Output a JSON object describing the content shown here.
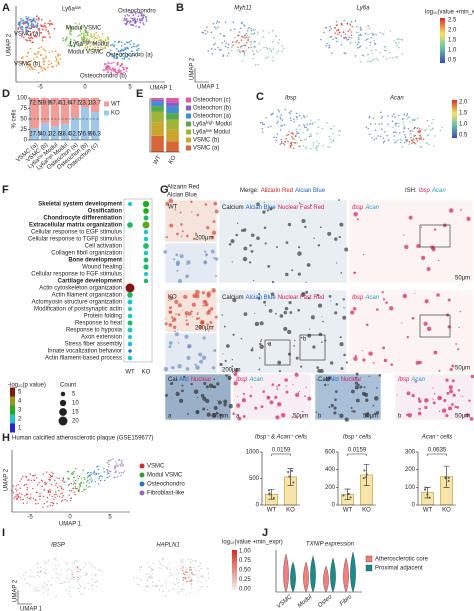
{
  "panel_labels": [
    "A",
    "B",
    "C",
    "D",
    "E",
    "F",
    "G",
    "H",
    "I",
    "J"
  ],
  "A": {
    "clusters": [
      "Ly6aˡᵒʷ",
      "VSMC (a)",
      "Modul VSMC",
      "Osteochondro",
      "Ly6aʰⁱᵍʰ Modul",
      "Modul VSMC",
      "VSMC (b)",
      "Osteochondro (a)",
      "Osteochondro (b)"
    ],
    "x_label": "UMAP 1",
    "y_label": "UMAP 2",
    "x_ticks": [
      "-5",
      "0",
      "5"
    ]
  },
  "B": {
    "genes": [
      "Myh11",
      "Ly6a"
    ],
    "colorbar_title": "log₁₀(value +min_expr)",
    "colorbar_ticks": [
      "2.5",
      "2.0",
      "1.5",
      "1.0",
      "0.5"
    ],
    "x_label": "UMAP 1",
    "y_label": "UMAP 2"
  },
  "C": {
    "genes": [
      "Ibsp",
      "Acan"
    ],
    "colorbar_ticks": [
      "2.0",
      "1.5",
      "1.0",
      "0.5"
    ]
  },
  "G": {
    "alizarin": "Alizarin Red",
    "alcian": "Alcian Blue",
    "merge": [
      "Merge:",
      "Alizarin Red",
      "Alcian Blue"
    ],
    "ish": [
      "ISH:",
      "Ibsp",
      "Acan"
    ],
    "groups": [
      "WT",
      "KO"
    ],
    "stain": [
      "Calcium",
      "Alcian Blue",
      "Nuclear Fast Red"
    ],
    "ish_probes": [
      "Ibsp",
      "Acan"
    ],
    "scale_200": "200μm",
    "scale_50": "50μm",
    "insets": [
      "a",
      "b"
    ],
    "zoom_stain": [
      "Cal",
      "Alci",
      "Nuclear"
    ]
  },
  "H": {
    "title": "Human calcified atherosclerotic plaque (GSE159677)",
    "clusters": [
      "VSMC",
      "Modul VSMC",
      "Osteochondro",
      "Fibroblast-like"
    ],
    "cluster_colors": [
      "#d62728",
      "#2ca02c",
      "#1f77b4",
      "#9467bd"
    ],
    "x_label": "UMAP 1",
    "y_label": "UMAP 2",
    "x_ticks": [
      "-5",
      "0",
      "5"
    ]
  },
  "I": {
    "genes": [
      "IBSP",
      "HAPLN1"
    ],
    "colorbar_title": "log₁₀(value +min_expr)",
    "colorbar_ticks": [
      "1.00",
      "0.75",
      "0.50",
      "0.25",
      "0.00"
    ],
    "x_label": "UMAP 1",
    "y_label": "UMAP 2"
  },
  "J": {
    "title": "TXNIP expression",
    "categories": [
      "VSMC",
      "Modul",
      "Osteo",
      "Fibro"
    ],
    "legend": [
      "Atherosclerotic core",
      "Proximal adjacent"
    ],
    "colors": [
      "#f08080",
      "#1b8a8a"
    ]
  },
  "chart_data": [
    {
      "type": "stacked_bar",
      "y_label": "% cells",
      "categories": [
        "VSMC (a)",
        "VSMC (b)",
        "Ly6aˡᵒʷ Modul",
        "Ly6aʰⁱᵍʰ Modul",
        "Osteochon (a)",
        "Osteochon (b)",
        "Osteochon (c)"
      ],
      "series": [
        {
          "name": "KO",
          "color": "#9fc7ea",
          "values": [
            27.5,
            40.1,
            32.6,
            38.4,
            52.5,
            76.9,
            66.3
          ]
        },
        {
          "name": "WT",
          "color": "#f19c97",
          "values": [
            72.5,
            59.9,
            67.4,
            61.6,
            47.5,
            23.1,
            33.7
          ]
        }
      ],
      "ylim": [
        0,
        100
      ],
      "yticks": [
        0,
        25,
        50,
        75,
        100
      ],
      "reference_line": 50,
      "value_text": true
    },
    {
      "type": "stacked_bar",
      "categories": [
        "WT",
        "KO"
      ],
      "series": [
        {
          "name": "VSMC (a)",
          "color": "#d9663a",
          "values": [
            30,
            20
          ]
        },
        {
          "name": "VSMC (b)",
          "color": "#c9a62e",
          "values": [
            25,
            22
          ]
        },
        {
          "name": "Ly6aˡᵒʷ Modul",
          "color": "#9fb53a",
          "values": [
            20,
            18
          ]
        },
        {
          "name": "Ly6aʰⁱᵍʰ Modul",
          "color": "#59a84a",
          "values": [
            10,
            12
          ]
        },
        {
          "name": "Osteochon (a)",
          "color": "#3d8fd1",
          "values": [
            8,
            12
          ]
        },
        {
          "name": "Osteochon (b)",
          "color": "#8a5cc8",
          "values": [
            4,
            8
          ]
        },
        {
          "name": "Osteochon (c)",
          "color": "#e05aa0",
          "values": [
            3,
            8
          ]
        }
      ],
      "ylim": [
        0,
        100
      ]
    },
    {
      "type": "dot",
      "categories": [
        "Skeletal system development",
        "Ossification",
        "Chondrocyte differentiation",
        "Extracellular matrix organization",
        "Cellular response to EGF stimulus",
        "Cellular response to TGFβ stimulus",
        "Cell activation",
        "Collagen fibril organization",
        "Bone development",
        "Wound healing",
        "Cellular response to FGF stimulus",
        "Cartilage development",
        "Actin cytoskeleton organization",
        "Actin filament organization",
        "Actomyosin structure organization",
        "Modification of postsynaptic actin",
        "Protein folding",
        "Response to heat",
        "Response to hypoxia",
        "Axon extension",
        "Stress fiber assembly",
        "Innate vocalization behavior",
        "Actin filament-based process"
      ],
      "bold": [
        true,
        true,
        true,
        true,
        false,
        false,
        false,
        false,
        true,
        false,
        false,
        true,
        false,
        false,
        false,
        false,
        false,
        false,
        false,
        false,
        false,
        false,
        false
      ],
      "series": [
        {
          "name": "WT",
          "count": [
            4,
            null,
            null,
            8,
            null,
            null,
            null,
            null,
            null,
            null,
            null,
            null,
            20,
            8,
            6,
            4,
            5,
            6,
            6,
            4,
            5,
            3,
            5
          ],
          "neg_log10_p": [
            2,
            null,
            null,
            2.5,
            null,
            null,
            null,
            null,
            null,
            null,
            null,
            null,
            5,
            2.5,
            2,
            2,
            2,
            2.5,
            2,
            2,
            2,
            1.5,
            2
          ]
        },
        {
          "name": "KO",
          "count": [
            10,
            8,
            6,
            12,
            5,
            5,
            8,
            5,
            6,
            7,
            4,
            5,
            null,
            null,
            null,
            null,
            null,
            null,
            null,
            null,
            null,
            null,
            null
          ],
          "neg_log10_p": [
            3,
            3,
            2.5,
            3.5,
            2,
            2,
            2.5,
            2,
            2.5,
            2.5,
            2,
            2.5,
            null,
            null,
            null,
            null,
            null,
            null,
            null,
            null,
            null,
            null,
            null
          ]
        }
      ],
      "colorbar_title": "-log₁₀(p value)",
      "clim": [
        1,
        5
      ],
      "colorbar_ticks": [
        1,
        2,
        3,
        4,
        5
      ],
      "size_title": "Count",
      "size_ticks": [
        5,
        10,
        15,
        20
      ]
    },
    {
      "type": "bar",
      "title": "Ibsp⁺ & Acan⁺ cells",
      "categories": [
        "WT",
        "KO"
      ],
      "values": [
        200,
        530
      ],
      "errors": [
        90,
        160
      ],
      "ylim": [
        0,
        1000
      ],
      "yticks": [
        0,
        500,
        1000
      ],
      "annotation": "0.0159",
      "color": "#f6e4a8"
    },
    {
      "type": "bar",
      "title": "Ibsp⁺ cells",
      "categories": [
        "WT",
        "KO"
      ],
      "values": [
        120,
        340
      ],
      "errors": [
        60,
        120
      ],
      "ylim": [
        0,
        600
      ],
      "yticks": [
        0,
        200,
        400,
        600
      ],
      "annotation": "0.0159",
      "color": "#f6e4a8"
    },
    {
      "type": "bar",
      "title": "Acan⁺ cells",
      "categories": [
        "WT",
        "KO"
      ],
      "values": [
        70,
        160
      ],
      "errors": [
        30,
        60
      ],
      "ylim": [
        0,
        300
      ],
      "yticks": [
        0,
        100,
        200,
        300
      ],
      "annotation": "0.0635",
      "color": "#f6e4a8"
    }
  ]
}
